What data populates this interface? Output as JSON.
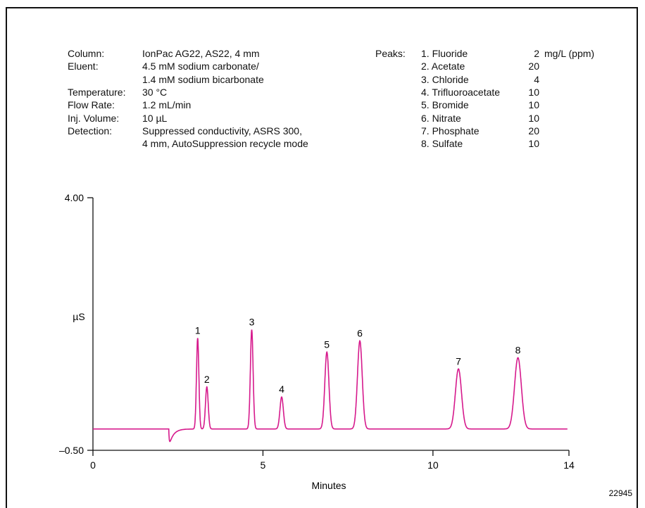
{
  "conditions": [
    {
      "label": "Column:",
      "value": [
        "IonPac AG22, AS22, 4 mm"
      ]
    },
    {
      "label": "Eluent:",
      "value": [
        "4.5 mM sodium carbonate/",
        "1.4 mM sodium bicarbonate"
      ]
    },
    {
      "label": "Temperature:",
      "value": [
        "30 °C"
      ]
    },
    {
      "label": "Flow Rate:",
      "value": [
        "1.2 mL/min"
      ]
    },
    {
      "label": "Inj. Volume:",
      "value": [
        "10 µL"
      ]
    },
    {
      "label": "Detection:",
      "value": [
        "Suppressed conductivity, ASRS 300,",
        "4 mm, AutoSuppression recycle mode"
      ]
    }
  ],
  "peaks_table": {
    "label": "Peaks:",
    "unit": "mg/L (ppm)",
    "rows": [
      {
        "name": "1. Fluoride",
        "conc": "2"
      },
      {
        "name": "2. Acetate",
        "conc": "20"
      },
      {
        "name": "3. Chloride",
        "conc": "4"
      },
      {
        "name": "4. Trifluoroacetate",
        "conc": "10"
      },
      {
        "name": "5. Bromide",
        "conc": "10"
      },
      {
        "name": "6. Nitrate",
        "conc": "10"
      },
      {
        "name": "7. Phosphate",
        "conc": "20"
      },
      {
        "name": "8. Sulfate",
        "conc": "10"
      }
    ]
  },
  "figure_id": "22945",
  "chart_data": {
    "type": "line",
    "xlabel": "Minutes",
    "ylabel": "µS",
    "xlim": [
      0,
      14
    ],
    "ylim": [
      -0.5,
      4.0
    ],
    "x_ticks": [
      0,
      5,
      10,
      14
    ],
    "y_tick_labels": [
      "4.00",
      "–0.50"
    ],
    "y_ticks": [
      4.0,
      -0.5
    ],
    "grid": false,
    "color": "#d6198c",
    "baseline": -0.12,
    "dip": {
      "x": 2.23,
      "y": -0.45,
      "width": 0.07
    },
    "peaks": [
      {
        "label": "1",
        "x": 3.08,
        "y": 1.5,
        "width": 0.035
      },
      {
        "label": "2",
        "x": 3.35,
        "y": 0.63,
        "width": 0.04
      },
      {
        "label": "3",
        "x": 4.67,
        "y": 1.65,
        "width": 0.04
      },
      {
        "label": "4",
        "x": 5.55,
        "y": 0.45,
        "width": 0.05
      },
      {
        "label": "5",
        "x": 6.88,
        "y": 1.25,
        "width": 0.06
      },
      {
        "label": "6",
        "x": 7.85,
        "y": 1.45,
        "width": 0.07
      },
      {
        "label": "7",
        "x": 10.75,
        "y": 0.95,
        "width": 0.09
      },
      {
        "label": "8",
        "x": 12.5,
        "y": 1.15,
        "width": 0.1
      }
    ]
  }
}
